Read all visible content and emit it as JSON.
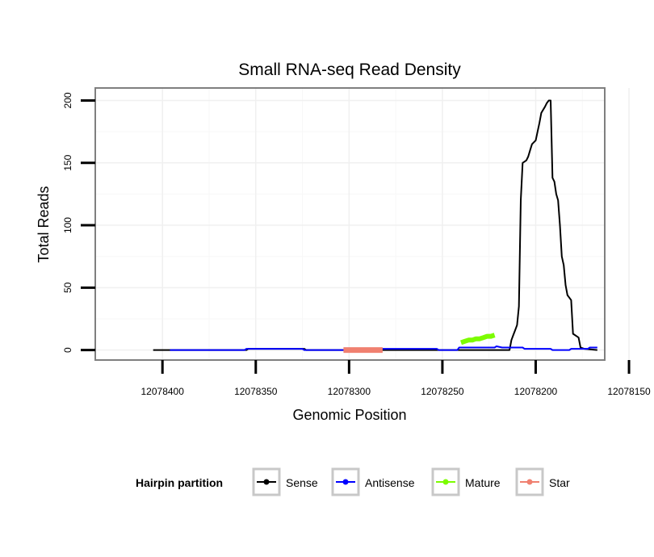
{
  "chart_data": {
    "type": "line",
    "title": "Small RNA-seq Read Density",
    "xlabel": "Genomic Position",
    "ylabel": "Total Reads",
    "xlim": [
      12078163,
      12078436
    ],
    "ylim": [
      -8,
      210
    ],
    "x_reversed": true,
    "x_ticks": [
      12078400,
      12078350,
      12078300,
      12078250,
      12078200,
      12078150
    ],
    "x_tick_labels": [
      "12078400",
      "12078350",
      "12078300",
      "12078250",
      "12078200",
      "12078150"
    ],
    "y_ticks": [
      0,
      50,
      100,
      150,
      200
    ],
    "y_tick_labels": [
      "0",
      "50",
      "100",
      "150",
      "200"
    ],
    "grid": true,
    "legend": {
      "title": "Hairpin partition",
      "position": "bottom",
      "entries": [
        {
          "label": "Sense",
          "color": "#000000"
        },
        {
          "label": "Antisense",
          "color": "#0000ff"
        },
        {
          "label": "Mature",
          "color": "#7cfc00"
        },
        {
          "label": "Star",
          "color": "#f08070"
        }
      ]
    },
    "series": [
      {
        "name": "Sense",
        "color": "#000000",
        "width": 2,
        "points": [
          [
            12078405,
            0
          ],
          [
            12078355,
            0
          ],
          [
            12078354,
            1
          ],
          [
            12078324,
            1
          ],
          [
            12078323,
            0
          ],
          [
            12078214,
            0
          ],
          [
            12078213,
            8
          ],
          [
            12078212,
            12
          ],
          [
            12078211,
            16
          ],
          [
            12078210,
            20
          ],
          [
            12078209,
            35
          ],
          [
            12078208,
            120
          ],
          [
            12078207,
            150
          ],
          [
            12078205,
            152
          ],
          [
            12078204,
            155
          ],
          [
            12078203,
            160
          ],
          [
            12078202,
            165
          ],
          [
            12078200,
            168
          ],
          [
            12078199,
            175
          ],
          [
            12078198,
            182
          ],
          [
            12078197,
            190
          ],
          [
            12078195,
            195
          ],
          [
            12078194,
            198
          ],
          [
            12078193,
            200
          ],
          [
            12078192,
            200
          ],
          [
            12078191,
            138
          ],
          [
            12078190,
            135
          ],
          [
            12078189,
            125
          ],
          [
            12078188,
            120
          ],
          [
            12078187,
            100
          ],
          [
            12078186,
            75
          ],
          [
            12078185,
            68
          ],
          [
            12078184,
            52
          ],
          [
            12078183,
            44
          ],
          [
            12078182,
            42
          ],
          [
            12078181,
            40
          ],
          [
            12078180,
            13
          ],
          [
            12078178,
            11
          ],
          [
            12078177,
            10
          ],
          [
            12078176,
            2
          ],
          [
            12078174,
            1
          ],
          [
            12078167,
            0
          ]
        ]
      },
      {
        "name": "Antisense",
        "color": "#0000ff",
        "width": 2,
        "points": [
          [
            12078396,
            0
          ],
          [
            12078356,
            0
          ],
          [
            12078355,
            1
          ],
          [
            12078325,
            1
          ],
          [
            12078324,
            0
          ],
          [
            12078293,
            0
          ],
          [
            12078292,
            1
          ],
          [
            12078253,
            1
          ],
          [
            12078252,
            0
          ],
          [
            12078242,
            0
          ],
          [
            12078241,
            2
          ],
          [
            12078222,
            2
          ],
          [
            12078221,
            3
          ],
          [
            12078218,
            2
          ],
          [
            12078207,
            2
          ],
          [
            12078206,
            1
          ],
          [
            12078192,
            1
          ],
          [
            12078191,
            0
          ],
          [
            12078182,
            0
          ],
          [
            12078181,
            1
          ],
          [
            12078172,
            1
          ],
          [
            12078171,
            2
          ],
          [
            12078167,
            2
          ]
        ]
      },
      {
        "name": "Mature",
        "color": "#7cfc00",
        "width": 6,
        "points": [
          [
            12078240,
            6
          ],
          [
            12078238,
            7
          ],
          [
            12078236,
            8
          ],
          [
            12078234,
            8
          ],
          [
            12078232,
            9
          ],
          [
            12078230,
            9
          ],
          [
            12078228,
            10
          ],
          [
            12078226,
            11
          ],
          [
            12078224,
            11
          ],
          [
            12078222,
            12
          ]
        ]
      },
      {
        "name": "Star",
        "color": "#f08070",
        "width": 7,
        "points": [
          [
            12078303,
            0
          ],
          [
            12078282,
            0
          ]
        ]
      }
    ]
  }
}
